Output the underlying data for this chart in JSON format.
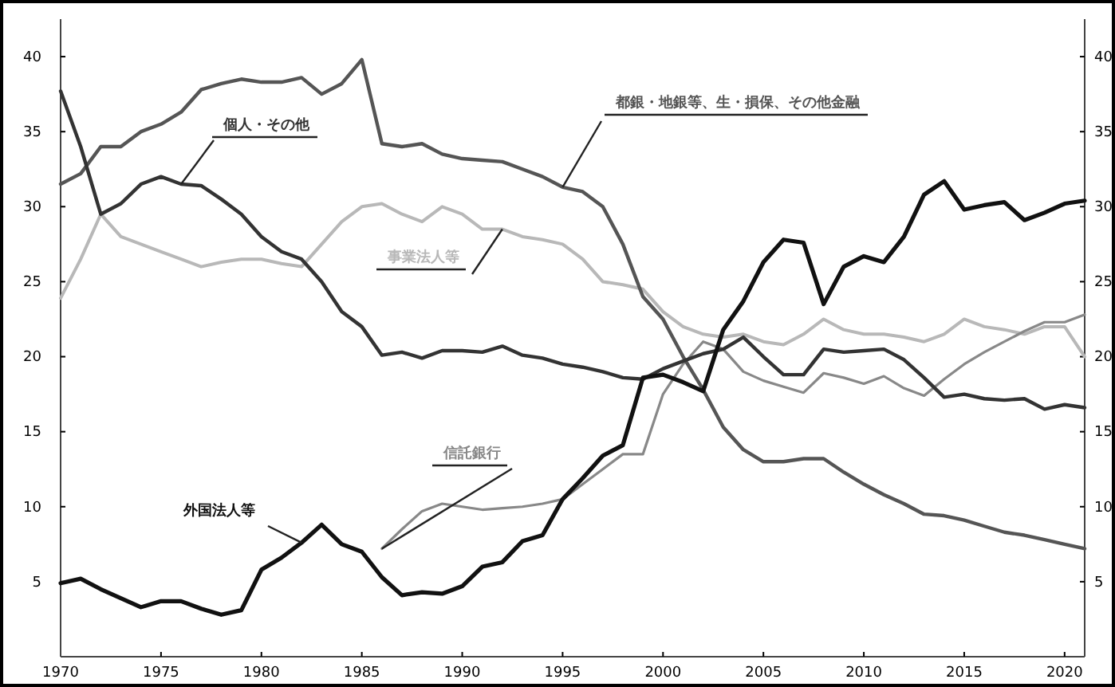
{
  "chart_data": {
    "type": "line",
    "x": [
      1970,
      1971,
      1972,
      1973,
      1974,
      1975,
      1976,
      1977,
      1978,
      1979,
      1980,
      1981,
      1982,
      1983,
      1984,
      1985,
      1986,
      1987,
      1988,
      1989,
      1990,
      1991,
      1992,
      1993,
      1994,
      1995,
      1996,
      1997,
      1998,
      1999,
      2000,
      2001,
      2002,
      2003,
      2004,
      2005,
      2006,
      2007,
      2008,
      2009,
      2010,
      2011,
      2012,
      2013,
      2014,
      2015,
      2016,
      2017,
      2018,
      2019,
      2020,
      2021
    ],
    "series": [
      {
        "name": "都銀・地銀等、生・損保、その他金融",
        "color": "#555555",
        "values": [
          31.5,
          32.2,
          34,
          34,
          35,
          35.5,
          36.3,
          37.8,
          38.2,
          38.5,
          38.3,
          38.3,
          38.6,
          37.5,
          38.2,
          39.8,
          34.2,
          34,
          34.2,
          33.5,
          33.2,
          33.1,
          33,
          32.5,
          32,
          31.3,
          31,
          30,
          27.5,
          24,
          22.5,
          20,
          17.8,
          15.3,
          13.8,
          13,
          13,
          13.2,
          13.2,
          12.3,
          11.5,
          10.8,
          10.2,
          9.5,
          9.4,
          9.1,
          8.7,
          8.3,
          8.1,
          7.8,
          7.5,
          7.2
        ]
      },
      {
        "name": "個人・その他",
        "color": "#333333",
        "values": [
          37.7,
          34,
          29.5,
          30.2,
          31.5,
          32,
          31.5,
          31.4,
          30.5,
          29.5,
          28,
          27,
          26.5,
          25,
          23,
          22,
          20.1,
          20.3,
          19.9,
          20.4,
          20.4,
          20.3,
          20.7,
          20.1,
          19.9,
          19.5,
          19.3,
          19,
          18.6,
          18.5,
          19.2,
          19.7,
          20.2,
          20.5,
          21.3,
          20,
          18.8,
          18.8,
          20.5,
          20.3,
          20.4,
          20.5,
          19.8,
          18.6,
          17.3,
          17.5,
          17.2,
          17.1,
          17.2,
          16.5,
          16.8,
          16.6
        ]
      },
      {
        "name": "事業法人等",
        "color": "#b8b8b8",
        "values": [
          23.9,
          26.5,
          29.5,
          28,
          27.5,
          27,
          26.5,
          26,
          26.3,
          26.5,
          26.5,
          26.2,
          26,
          27.5,
          29,
          30,
          30.2,
          29.5,
          29,
          30,
          29.5,
          28.5,
          28.5,
          28,
          27.8,
          27.5,
          26.5,
          25,
          24.8,
          24.5,
          23,
          22,
          21.5,
          21.3,
          21.5,
          21,
          20.8,
          21.5,
          22.5,
          21.8,
          21.5,
          21.5,
          21.3,
          21,
          21.5,
          22.5,
          22,
          21.8,
          21.5,
          22,
          22,
          20
        ]
      },
      {
        "name": "外国法人等",
        "color": "#111111",
        "values": [
          4.9,
          5.2,
          4.5,
          3.9,
          3.3,
          3.7,
          3.7,
          3.2,
          2.8,
          3.1,
          5.8,
          6.6,
          7.6,
          8.8,
          7.5,
          7,
          5.3,
          4.1,
          4.3,
          4.2,
          4.7,
          6,
          6.3,
          7.7,
          8.1,
          10.5,
          11.9,
          13.4,
          14.1,
          18.6,
          18.8,
          18.3,
          17.7,
          21.8,
          23.7,
          26.3,
          27.8,
          27.6,
          23.5,
          26,
          26.7,
          26.3,
          28,
          30.8,
          31.7,
          29.8,
          30.1,
          30.3,
          29.1,
          29.6,
          30.2,
          30.4
        ]
      },
      {
        "name": "信託銀行",
        "color": "#888888",
        "values": [
          null,
          null,
          null,
          null,
          null,
          null,
          null,
          null,
          null,
          null,
          null,
          null,
          null,
          null,
          null,
          null,
          7.2,
          8.5,
          9.7,
          10.2,
          10,
          9.8,
          9.9,
          10,
          10.2,
          10.5,
          11.5,
          12.5,
          13.5,
          13.5,
          17.5,
          19.5,
          21,
          20.5,
          19,
          18.4,
          18,
          17.6,
          18.9,
          18.6,
          18.2,
          18.7,
          17.9,
          17.4,
          18.5,
          19.5,
          20.3,
          21,
          21.7,
          22.3,
          22.3,
          22.8
        ]
      }
    ],
    "xlim": [
      1970,
      2021
    ],
    "xticks": [
      1970,
      1975,
      1980,
      1985,
      1990,
      1995,
      2000,
      2005,
      2010,
      2015,
      2020
    ],
    "ylim": [
      0,
      42.5
    ],
    "yticks": [
      5,
      10,
      15,
      20,
      25,
      30,
      35,
      40
    ],
    "y2lim": [
      0,
      42.5
    ],
    "y2ticks": [
      5,
      10,
      15,
      20,
      25,
      30,
      35,
      40
    ],
    "grid": false,
    "marker": "none",
    "line_style": "solid"
  }
}
